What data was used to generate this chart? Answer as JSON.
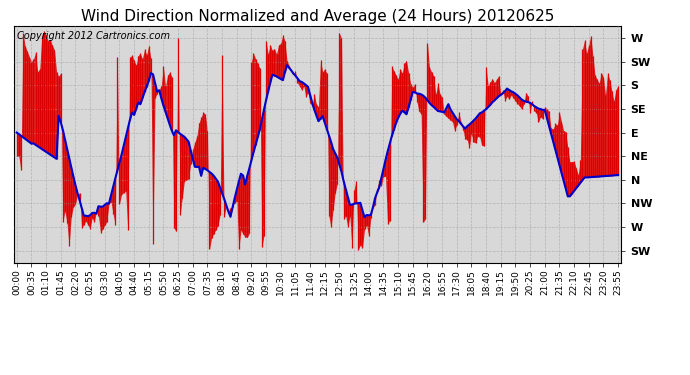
{
  "title": "Wind Direction Normalized and Average (24 Hours) 20120625",
  "copyright": "Copyright 2012 Cartronics.com",
  "background_color": "#ffffff",
  "plot_bg_color": "#d8d8d8",
  "grid_color": "#aaaaaa",
  "red_color": "#dd0000",
  "blue_color": "#0000cc",
  "y_tick_labels": [
    "SW",
    "W",
    "NW",
    "N",
    "NE",
    "E",
    "SE",
    "S",
    "SW",
    "W"
  ],
  "y_tick_positions": [
    0,
    1,
    2,
    3,
    4,
    5,
    6,
    7,
    8,
    9
  ],
  "ylim": [
    -0.5,
    9.5
  ],
  "x_tick_labels": [
    "00:00",
    "00:35",
    "01:10",
    "01:45",
    "02:20",
    "02:55",
    "03:30",
    "04:05",
    "04:40",
    "05:15",
    "05:50",
    "06:25",
    "07:00",
    "07:35",
    "08:10",
    "08:45",
    "09:20",
    "09:55",
    "10:30",
    "11:05",
    "11:40",
    "12:15",
    "12:50",
    "13:25",
    "14:00",
    "14:35",
    "15:10",
    "15:45",
    "16:20",
    "16:55",
    "17:30",
    "18:05",
    "18:40",
    "19:15",
    "19:50",
    "20:25",
    "21:00",
    "21:35",
    "22:10",
    "22:45",
    "23:20",
    "23:55"
  ],
  "title_fontsize": 11,
  "copyright_fontsize": 7,
  "tick_fontsize": 6.5,
  "ylabel_fontsize": 8,
  "n_points": 288,
  "seed": 42
}
